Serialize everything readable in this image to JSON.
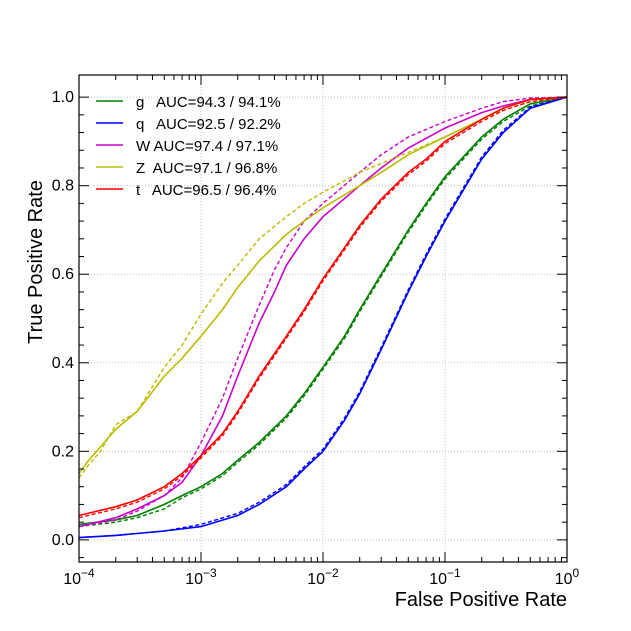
{
  "chart_data": {
    "type": "line",
    "xlabel": "False Positive Rate",
    "ylabel": "True Positive Rate",
    "xscale": "log",
    "xlim": [
      0.0001,
      1
    ],
    "ylim": [
      -0.05,
      1.05
    ],
    "grid": true,
    "legend_position": "top-left",
    "x_ticks": [
      {
        "value": 0.0001,
        "base": "10",
        "exp": "−4"
      },
      {
        "value": 0.001,
        "base": "10",
        "exp": "−3"
      },
      {
        "value": 0.01,
        "base": "10",
        "exp": "−2"
      },
      {
        "value": 0.1,
        "base": "10",
        "exp": "−1"
      },
      {
        "value": 1,
        "base": "10",
        "exp": "0"
      }
    ],
    "y_ticks": [
      {
        "value": 0.0,
        "label": "0.0"
      },
      {
        "value": 0.2,
        "label": "0.2"
      },
      {
        "value": 0.4,
        "label": "0.4"
      },
      {
        "value": 0.6,
        "label": "0.6"
      },
      {
        "value": 0.8,
        "label": "0.8"
      },
      {
        "value": 1.0,
        "label": "1.0"
      }
    ],
    "series": [
      {
        "name": "g   AUC=94.3 / 94.1%",
        "color": "#008000",
        "x": [
          0.0001,
          0.0002,
          0.0003,
          0.0005,
          0.0007,
          0.001,
          0.0015,
          0.002,
          0.003,
          0.005,
          0.007,
          0.01,
          0.015,
          0.02,
          0.03,
          0.05,
          0.07,
          0.1,
          0.2,
          0.3,
          0.5,
          1
        ],
        "solid": [
          0.035,
          0.045,
          0.055,
          0.08,
          0.1,
          0.12,
          0.15,
          0.18,
          0.22,
          0.28,
          0.33,
          0.39,
          0.46,
          0.52,
          0.6,
          0.7,
          0.76,
          0.82,
          0.91,
          0.95,
          0.985,
          1.0
        ],
        "dashed": [
          0.03,
          0.04,
          0.05,
          0.07,
          0.095,
          0.115,
          0.145,
          0.175,
          0.215,
          0.275,
          0.325,
          0.385,
          0.455,
          0.515,
          0.595,
          0.695,
          0.755,
          0.815,
          0.905,
          0.945,
          0.98,
          1.0
        ]
      },
      {
        "name": "q   AUC=92.5 / 92.2%",
        "color": "#0000ff",
        "x": [
          0.0001,
          0.0002,
          0.0005,
          0.001,
          0.002,
          0.003,
          0.005,
          0.007,
          0.01,
          0.015,
          0.02,
          0.03,
          0.05,
          0.07,
          0.1,
          0.2,
          0.3,
          0.5,
          1
        ],
        "solid": [
          0.005,
          0.01,
          0.02,
          0.03,
          0.055,
          0.08,
          0.12,
          0.16,
          0.2,
          0.27,
          0.33,
          0.43,
          0.56,
          0.64,
          0.72,
          0.86,
          0.92,
          0.975,
          1.0
        ],
        "dashed": [
          0.005,
          0.01,
          0.02,
          0.035,
          0.06,
          0.085,
          0.125,
          0.165,
          0.205,
          0.275,
          0.335,
          0.435,
          0.565,
          0.645,
          0.725,
          0.865,
          0.925,
          0.978,
          1.0
        ]
      },
      {
        "name": "W AUC=97.4 / 97.1%",
        "color": "#cc00cc",
        "x": [
          0.0001,
          0.0002,
          0.0003,
          0.0005,
          0.0007,
          0.001,
          0.0015,
          0.002,
          0.003,
          0.004,
          0.005,
          0.007,
          0.01,
          0.02,
          0.03,
          0.05,
          0.1,
          0.2,
          0.3,
          0.5,
          1
        ],
        "solid": [
          0.03,
          0.05,
          0.07,
          0.1,
          0.13,
          0.19,
          0.28,
          0.37,
          0.49,
          0.56,
          0.62,
          0.68,
          0.73,
          0.8,
          0.84,
          0.885,
          0.93,
          0.965,
          0.98,
          0.995,
          1.0
        ],
        "dashed": [
          0.03,
          0.045,
          0.065,
          0.1,
          0.14,
          0.22,
          0.32,
          0.41,
          0.53,
          0.61,
          0.66,
          0.72,
          0.76,
          0.83,
          0.87,
          0.91,
          0.945,
          0.975,
          0.99,
          0.998,
          1.0
        ]
      },
      {
        "name": "Z  AUC=97.1 / 96.8%",
        "color": "#bbbb00",
        "x": [
          0.0001,
          0.00012,
          0.00015,
          0.0002,
          0.0003,
          0.0005,
          0.0007,
          0.001,
          0.0015,
          0.002,
          0.003,
          0.005,
          0.007,
          0.01,
          0.02,
          0.03,
          0.05,
          0.1,
          0.2,
          0.3,
          0.5,
          1
        ],
        "solid": [
          0.15,
          0.18,
          0.21,
          0.25,
          0.29,
          0.37,
          0.41,
          0.46,
          0.52,
          0.57,
          0.63,
          0.69,
          0.72,
          0.75,
          0.8,
          0.83,
          0.87,
          0.91,
          0.95,
          0.975,
          0.995,
          1.0
        ],
        "dashed": [
          0.14,
          0.17,
          0.2,
          0.26,
          0.29,
          0.39,
          0.44,
          0.51,
          0.58,
          0.62,
          0.68,
          0.73,
          0.76,
          0.785,
          0.83,
          0.85,
          0.875,
          0.91,
          0.95,
          0.97,
          0.99,
          1.0
        ]
      },
      {
        "name": "t   AUC=96.5 / 96.4%",
        "color": "#ff0000",
        "x": [
          0.0001,
          0.0002,
          0.0003,
          0.0005,
          0.0007,
          0.001,
          0.0015,
          0.002,
          0.003,
          0.005,
          0.007,
          0.01,
          0.015,
          0.02,
          0.03,
          0.05,
          0.07,
          0.1,
          0.2,
          0.3,
          0.5,
          1
        ],
        "solid": [
          0.055,
          0.075,
          0.09,
          0.12,
          0.15,
          0.19,
          0.24,
          0.29,
          0.37,
          0.46,
          0.52,
          0.59,
          0.66,
          0.71,
          0.77,
          0.83,
          0.86,
          0.9,
          0.95,
          0.975,
          0.995,
          1.0
        ],
        "dashed": [
          0.05,
          0.07,
          0.085,
          0.115,
          0.145,
          0.185,
          0.235,
          0.285,
          0.365,
          0.455,
          0.515,
          0.585,
          0.655,
          0.705,
          0.765,
          0.825,
          0.855,
          0.895,
          0.945,
          0.97,
          0.99,
          1.0
        ]
      }
    ]
  }
}
